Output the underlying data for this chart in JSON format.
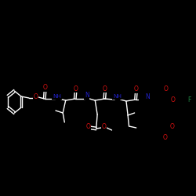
{
  "bg": "#000000",
  "wh": "#ffffff",
  "oc": "#dd1111",
  "nc": "#2222cc",
  "fc": "#228844",
  "lw": 1.0,
  "fs": 5.5,
  "fig_w": 2.5,
  "fig_h": 2.5,
  "dpi": 100,
  "xlim": [
    0,
    250
  ],
  "ylim": [
    0,
    250
  ]
}
